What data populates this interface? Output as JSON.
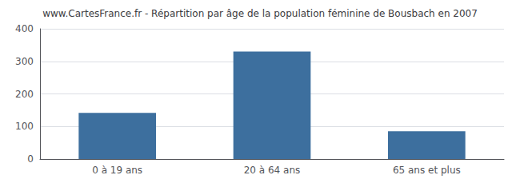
{
  "chart_data": {
    "type": "bar",
    "title": "www.CartesFrance.fr - Répartition par âge de la population féminine de Bousbach en 2007",
    "categories": [
      "0 à 19 ans",
      "20 à 64 ans",
      "65 ans et plus"
    ],
    "values": [
      142,
      330,
      85
    ],
    "color": "#3d6f9e",
    "ylim": [
      0,
      400
    ],
    "yticks": [
      0,
      100,
      200,
      300,
      400
    ],
    "grid": true
  }
}
